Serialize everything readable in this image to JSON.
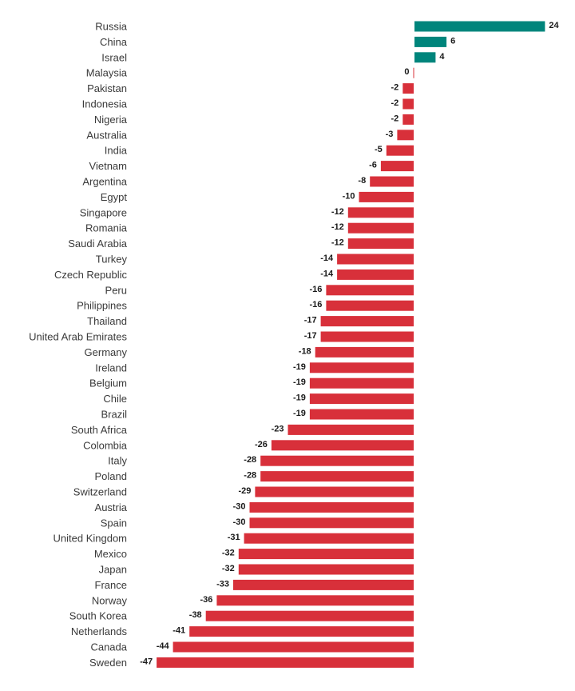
{
  "chart_data": {
    "type": "bar",
    "orientation": "horizontal",
    "title": "",
    "xlabel": "",
    "ylabel": "",
    "grid": false,
    "legend": "none",
    "xlim": [
      -47,
      24
    ],
    "colors": {
      "positive": "#00857c",
      "negative": "#d8303a"
    },
    "categories": [
      "Russia",
      "China",
      "Israel",
      "Malaysia",
      "Pakistan",
      "Indonesia",
      "Nigeria",
      "Australia",
      "India",
      "Vietnam",
      "Argentina",
      "Egypt",
      "Singapore",
      "Romania",
      "Saudi Arabia",
      "Turkey",
      "Czech Republic",
      "Peru",
      "Philippines",
      "Thailand",
      "United Arab Emirates",
      "Germany",
      "Ireland",
      "Belgium",
      "Chile",
      "Brazil",
      "South Africa",
      "Colombia",
      "Italy",
      "Poland",
      "Switzerland",
      "Austria",
      "Spain",
      "United Kingdom",
      "Mexico",
      "Japan",
      "France",
      "Norway",
      "South Korea",
      "Netherlands",
      "Canada",
      "Sweden"
    ],
    "values": [
      24,
      6,
      4,
      0,
      -2,
      -2,
      -2,
      -3,
      -5,
      -6,
      -8,
      -10,
      -12,
      -12,
      -12,
      -14,
      -14,
      -16,
      -16,
      -17,
      -17,
      -18,
      -19,
      -19,
      -19,
      -19,
      -23,
      -26,
      -28,
      -28,
      -29,
      -30,
      -30,
      -31,
      -32,
      -32,
      -33,
      -36,
      -38,
      -41,
      -44,
      -47
    ],
    "value_labels": [
      "24",
      "6",
      "4",
      "0",
      "-2",
      "-2",
      "-2",
      "-3",
      "-5",
      "-6",
      "-8",
      "-10",
      "-12",
      "-12",
      "-12",
      "-14",
      "-14",
      "-16",
      "-16",
      "-17",
      "-17",
      "-18",
      "-19",
      "-19",
      "-19",
      "-19",
      "-23",
      "-26",
      "-28",
      "-28",
      "-29",
      "-30",
      "-30",
      "-31",
      "-32",
      "-32",
      "-33",
      "-36",
      "-38",
      "-41",
      "-44",
      "-47"
    ]
  }
}
